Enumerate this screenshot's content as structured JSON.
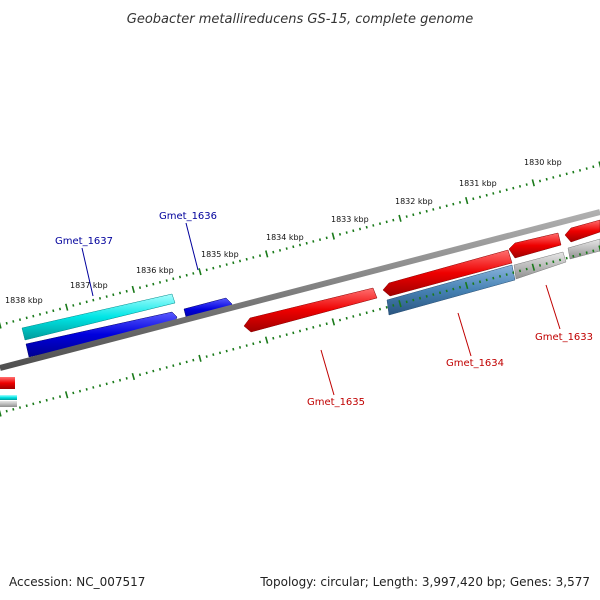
{
  "title": "Geobacter metallireducens GS-15, complete genome",
  "footer": {
    "accession": "Accession: NC_007517",
    "summary": "Topology: circular; Length: 3,997,420 bp; Genes: 3,577"
  },
  "ticks": [
    "1830 kbp",
    "1831 kbp",
    "1832 kbp",
    "1833 kbp",
    "1834 kbp",
    "1835 kbp",
    "1836 kbp",
    "1837 kbp",
    "1838 kbp"
  ],
  "genes": [
    {
      "name": "Gmet_1633",
      "strand": "reverse"
    },
    {
      "name": "Gmet_1634",
      "strand": "reverse"
    },
    {
      "name": "Gmet_1635",
      "strand": "reverse"
    },
    {
      "name": "Gmet_1636",
      "strand": "forward"
    },
    {
      "name": "Gmet_1637",
      "strand": "forward"
    }
  ],
  "colors": {
    "forward_gene": "#0000dd",
    "forward_gene_alt": "#00e5e5",
    "reverse_gene": "#ee0000",
    "reverse_gene_alt": "#4682b4",
    "pseudo": "#bbbbbb",
    "backbone": "#808080",
    "tick": "#1a7a1a",
    "label_forward": "#00009c",
    "label_reverse": "#c00000"
  }
}
